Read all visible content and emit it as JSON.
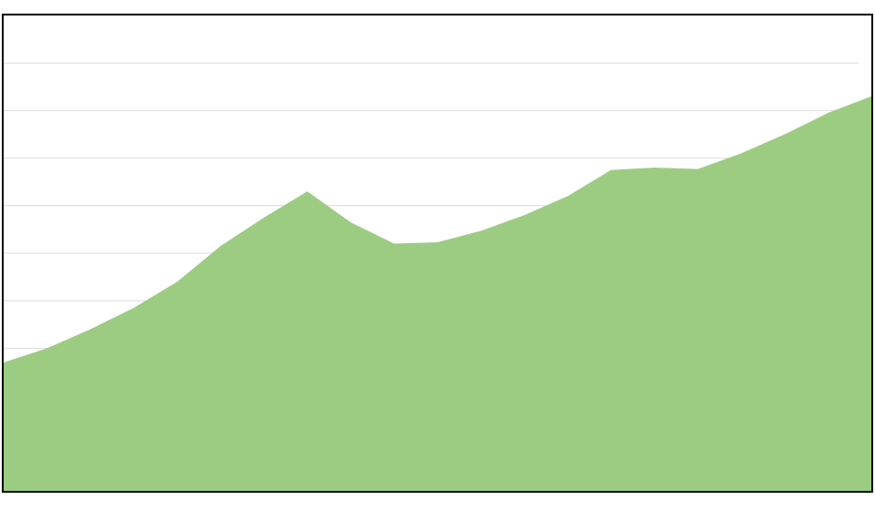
{
  "colors": {
    "area_fill": "#9ccc82",
    "grid": "#d9d9d9",
    "frame": "#000000",
    "background": "#ffffff"
  },
  "chart_data": {
    "type": "area",
    "title": "",
    "xlabel": "",
    "ylabel": "",
    "grid": true,
    "legend": "none",
    "x": [
      0,
      1,
      2,
      3,
      4,
      5,
      6,
      7,
      8,
      9,
      10,
      11,
      12,
      13,
      14,
      15,
      16,
      17,
      18,
      19,
      20
    ],
    "ylim": [
      0,
      10
    ],
    "series": [
      {
        "values": [
          2.7,
          3.0,
          3.4,
          3.85,
          4.4,
          5.15,
          5.75,
          6.3,
          5.65,
          5.2,
          5.23,
          5.47,
          5.8,
          6.2,
          6.75,
          6.8,
          6.77,
          7.1,
          7.5,
          7.95,
          8.3
        ]
      }
    ]
  }
}
